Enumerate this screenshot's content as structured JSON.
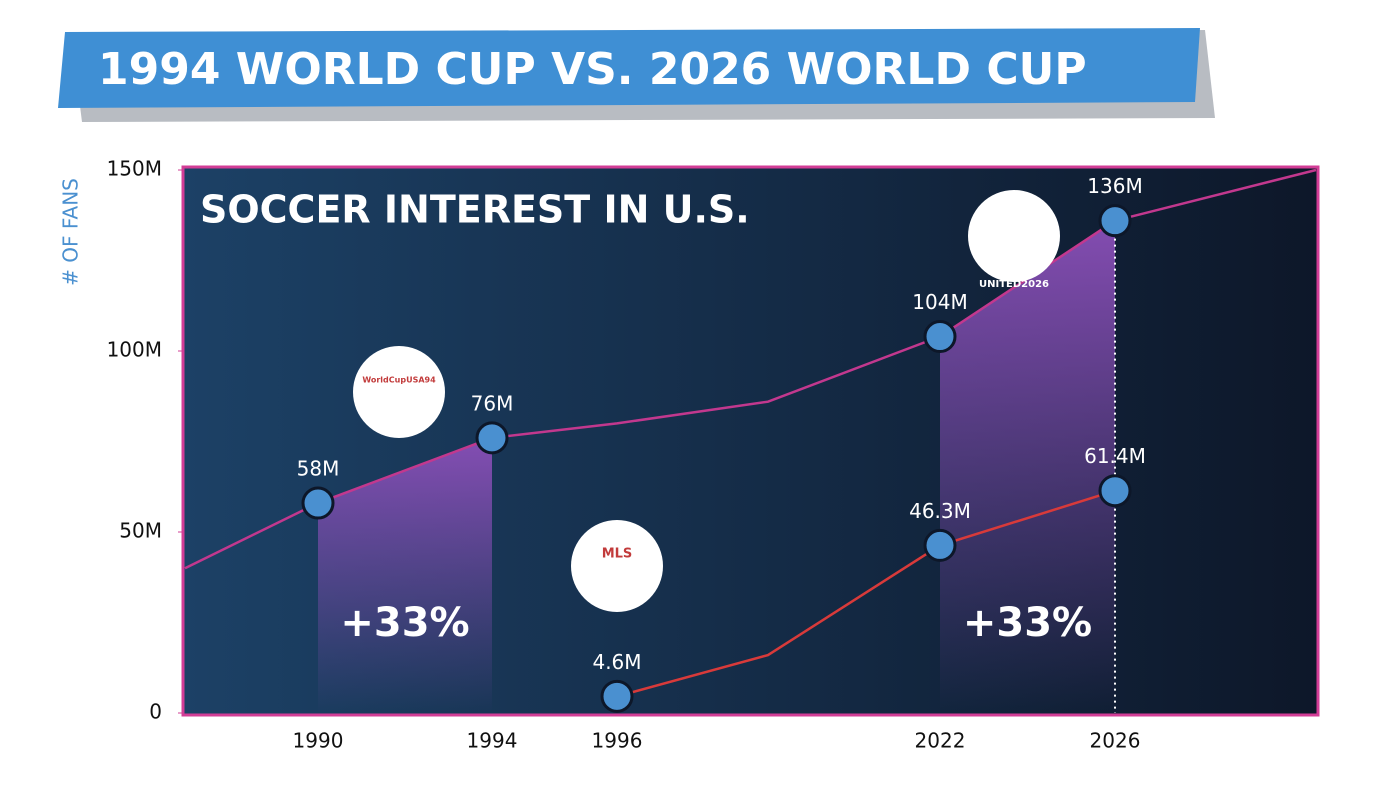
{
  "chart_data": {
    "type": "line",
    "title": "1994 WORLD CUP VS. 2026 WORLD CUP",
    "subtitle": "SOCCER INTEREST IN U.S.",
    "y_label": "# OF FANS",
    "categories": [
      null,
      "1990",
      "1994",
      "1996",
      null,
      "2022",
      "2026",
      null
    ],
    "series": [
      {
        "color": "#c2388e",
        "values": [
          40000000,
          58000000,
          76000000,
          80000000,
          86000000,
          104000000,
          136000000,
          150000000
        ],
        "value_labels": [
          null,
          "58M",
          "76M",
          null,
          null,
          "104M",
          "136M",
          null
        ]
      },
      {
        "color": "#d83a3a",
        "values": [
          null,
          null,
          null,
          4600000,
          16000000,
          46300000,
          61400000,
          null
        ],
        "value_labels": [
          null,
          null,
          null,
          "4.6M",
          null,
          "46.3M",
          "61.4M",
          null
        ]
      }
    ],
    "ylim": [
      0,
      150000000
    ],
    "yticks": [
      0,
      {
        "value": 50000000,
        "label": "50M"
      },
      {
        "value": 100000000,
        "label": "100M"
      },
      {
        "value": 150000000,
        "label": "150M"
      }
    ],
    "annotations": [
      "+33%",
      "+33%"
    ],
    "logos": [
      "WorldCupUSA94",
      "MLS",
      "UNITED2026"
    ]
  }
}
